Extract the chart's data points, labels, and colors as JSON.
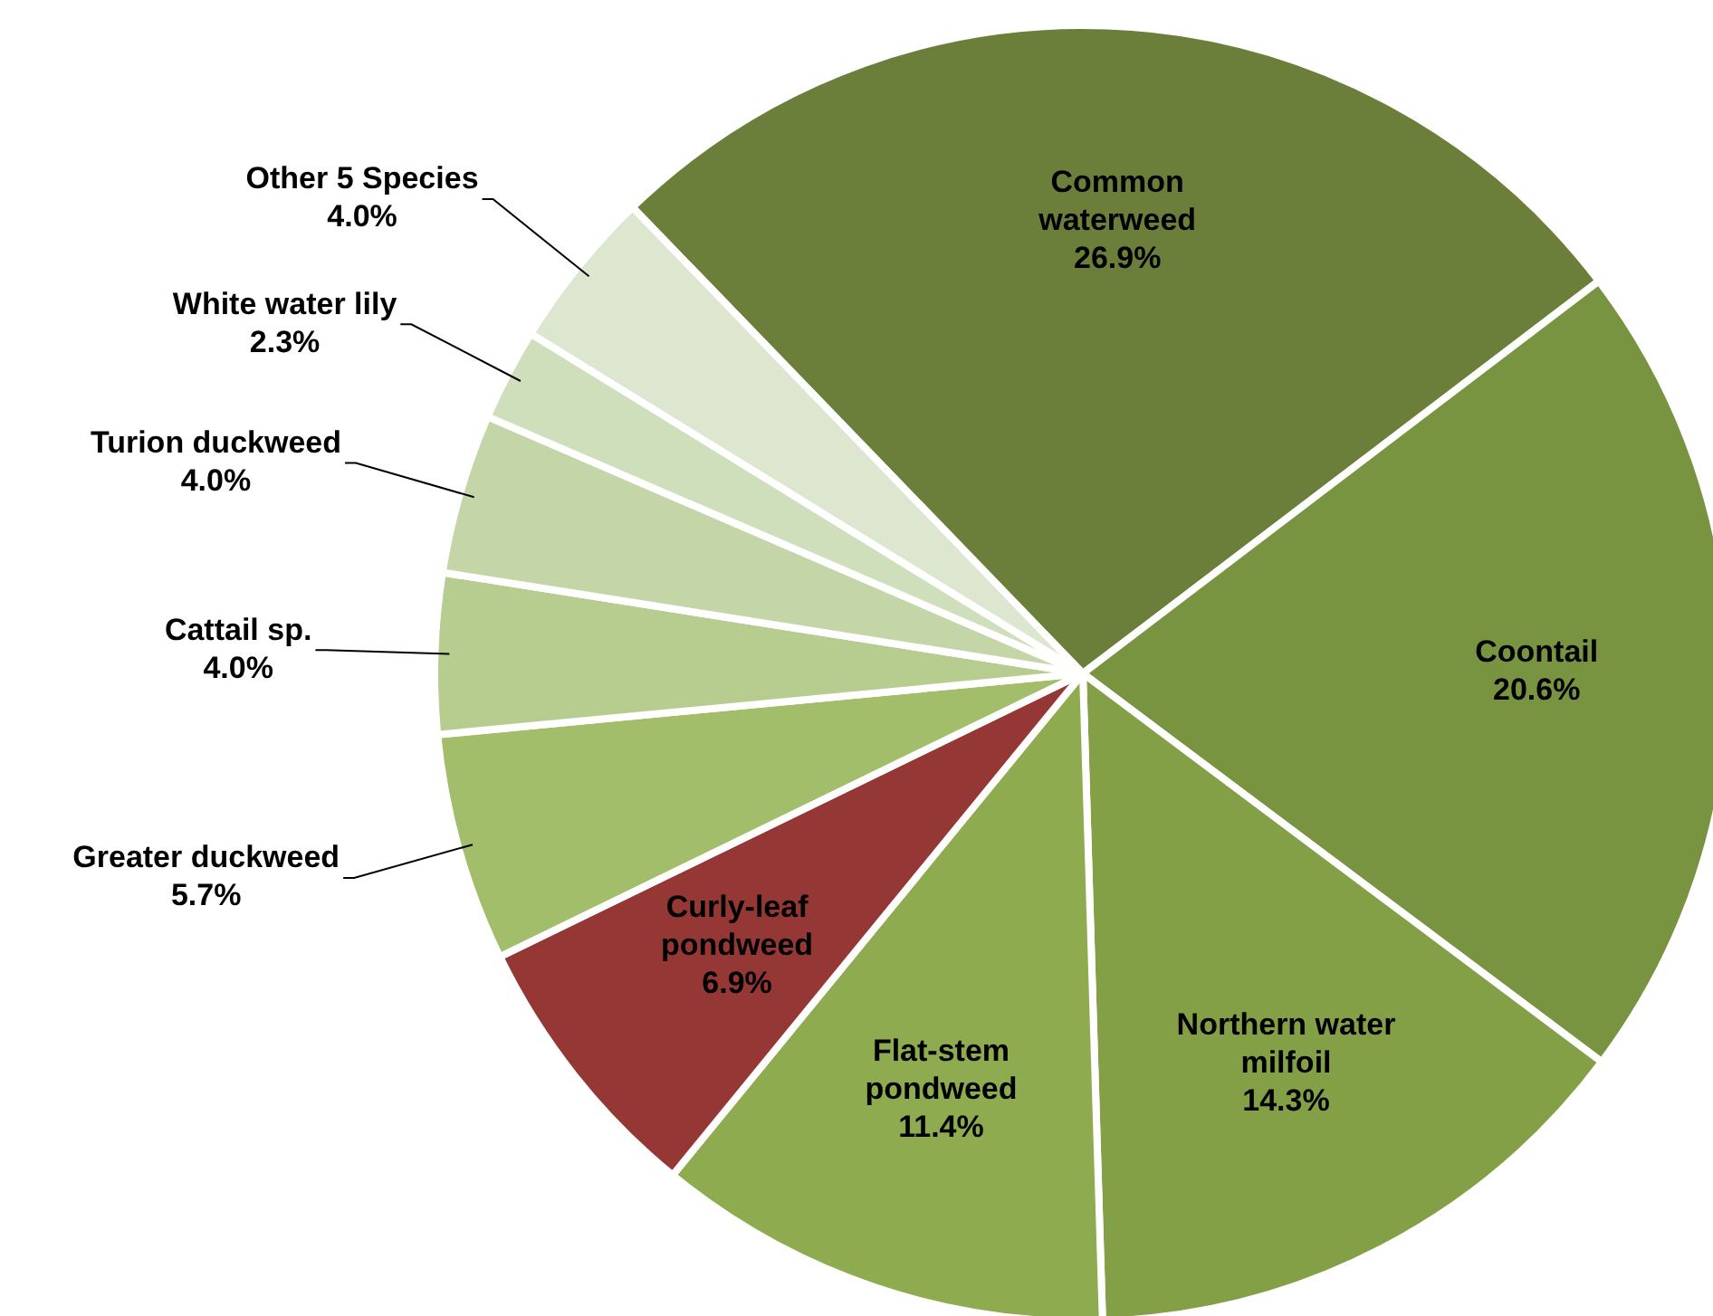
{
  "chart_data": {
    "type": "pie",
    "categories": [
      "Common waterweed",
      "Coontail",
      "Northern water milfoil",
      "Flat-stem pondweed",
      "Curly-leaf pondweed",
      "Greater duckweed",
      "Cattail sp.",
      "Turion duckweed",
      "White water lily",
      "Other 5 Species"
    ],
    "values": [
      26.9,
      20.6,
      14.3,
      11.4,
      6.9,
      5.7,
      4.0,
      4.0,
      2.3,
      4.0
    ],
    "value_labels": [
      "26.9%",
      "20.6%",
      "14.3%",
      "11.4%",
      "6.9%",
      "5.7%",
      "4.0%",
      "4.0%",
      "2.3%",
      "4.0%"
    ],
    "colors": [
      "#6b7f3a",
      "#789440",
      "#84a047",
      "#8eab50",
      "#953735",
      "#a3be6a",
      "#b7cd90",
      "#c4d5a8",
      "#d0dfbb",
      "#dde6cf"
    ],
    "legend": false
  }
}
